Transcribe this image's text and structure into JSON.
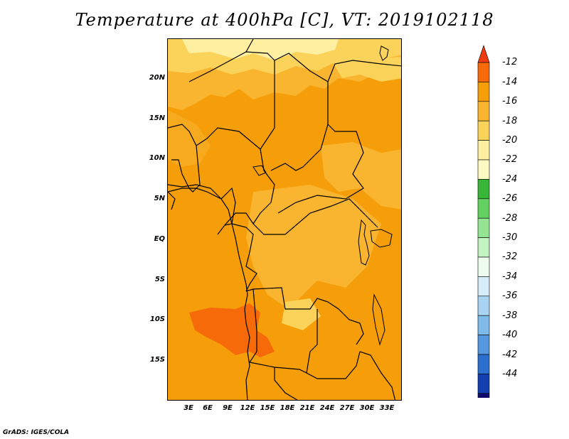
{
  "title": "Temperature at 400hPa [C], VT: 2019102118",
  "credit": "GrADS: IGES/COLA",
  "lat_labels": [
    "20N",
    "15N",
    "10N",
    "5N",
    "EQ",
    "5S",
    "10S",
    "15S"
  ],
  "lon_labels": [
    "3E",
    "6E",
    "9E",
    "12E",
    "15E",
    "18E",
    "21E",
    "24E",
    "27E",
    "30E",
    "33E"
  ],
  "colorbar": {
    "labels": [
      "-12",
      "-14",
      "-16",
      "-18",
      "-20",
      "-22",
      "-24",
      "-26",
      "-28",
      "-30",
      "-32",
      "-34",
      "-36",
      "-38",
      "-40",
      "-42",
      "-44"
    ],
    "colors": [
      "#ee3b10",
      "#f76a0a",
      "#f59e0a",
      "#f9b52f",
      "#fbd35a",
      "#fef0a0",
      "#fdfbc3",
      "#36b536",
      "#62d162",
      "#93e493",
      "#c3f2c3",
      "#eefcee",
      "#d6ecf9",
      "#a9d3f3",
      "#7ebbeb",
      "#5499e0",
      "#2b6fcf",
      "#1240b1",
      "#100a6e",
      "#e9e9f9"
    ]
  },
  "colors": {
    "main": "#f59e0a",
    "warm": "#f76a0a",
    "cool": "#f9b52f",
    "pale": "#fbd35a",
    "palest": "#fef0a0"
  }
}
